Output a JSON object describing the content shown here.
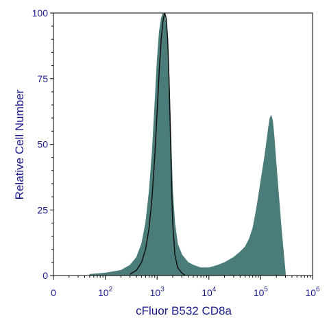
{
  "chart_data": {
    "type": "area",
    "xlabel": "cFluor B532 CD8a",
    "ylabel": "Relative Cell Number",
    "x_scale": "log",
    "x_ticks": [
      {
        "value": 0,
        "label": "0",
        "base": "",
        "exp": ""
      },
      {
        "value": 100,
        "label": "10^2",
        "base": "10",
        "exp": "2"
      },
      {
        "value": 1000,
        "label": "10^3",
        "base": "10",
        "exp": "3"
      },
      {
        "value": 10000,
        "label": "10^4",
        "base": "10",
        "exp": "4"
      },
      {
        "value": 100000,
        "label": "10^5",
        "base": "10",
        "exp": "5"
      },
      {
        "value": 1000000,
        "label": "10^6",
        "base": "10",
        "exp": "6"
      }
    ],
    "y_ticks": [
      {
        "value": 0,
        "label": "0"
      },
      {
        "value": 25,
        "label": "25"
      },
      {
        "value": 50,
        "label": "50"
      },
      {
        "value": 75,
        "label": "75"
      },
      {
        "value": 100,
        "label": "100"
      }
    ],
    "ylim": [
      0,
      100
    ],
    "grid": false,
    "colors": {
      "filled": "#4a7d79",
      "outline": "#111111",
      "axis_text": "#1a1a8c",
      "axis_line": "#000000"
    },
    "series": [
      {
        "style": "filled",
        "x": [
          50,
          100,
          200,
          300,
          400,
          500,
          600,
          700,
          800,
          900,
          1000,
          1100,
          1200,
          1300,
          1400,
          1500,
          1600,
          1700,
          1800,
          1900,
          2000,
          2200,
          2500,
          3000,
          4000,
          5000,
          7000,
          10000,
          15000,
          20000,
          30000,
          40000,
          50000,
          60000,
          70000,
          80000,
          90000,
          100000,
          120000,
          140000,
          150000,
          160000,
          170000,
          180000,
          200000,
          250000,
          300000
        ],
        "values": [
          0.5,
          1,
          2,
          4,
          7,
          12,
          20,
          32,
          47,
          65,
          82,
          93,
          98,
          100,
          99,
          96,
          88,
          78,
          62,
          46,
          32,
          20,
          12,
          8,
          5,
          4,
          3,
          3,
          4,
          5,
          7,
          9,
          11,
          14,
          18,
          24,
          30,
          36,
          46,
          56,
          60,
          61,
          59,
          54,
          42,
          18,
          1
        ]
      },
      {
        "style": "outline",
        "x": [
          300,
          400,
          500,
          600,
          700,
          800,
          900,
          1000,
          1100,
          1200,
          1300,
          1400,
          1500,
          1600,
          1700,
          1800,
          1900,
          2000,
          2200,
          2500,
          3000,
          3500
        ],
        "values": [
          0.5,
          2,
          5,
          10,
          18,
          30,
          45,
          62,
          78,
          90,
          97,
          100,
          98,
          90,
          75,
          55,
          35,
          20,
          8,
          3,
          1,
          0
        ]
      }
    ]
  }
}
